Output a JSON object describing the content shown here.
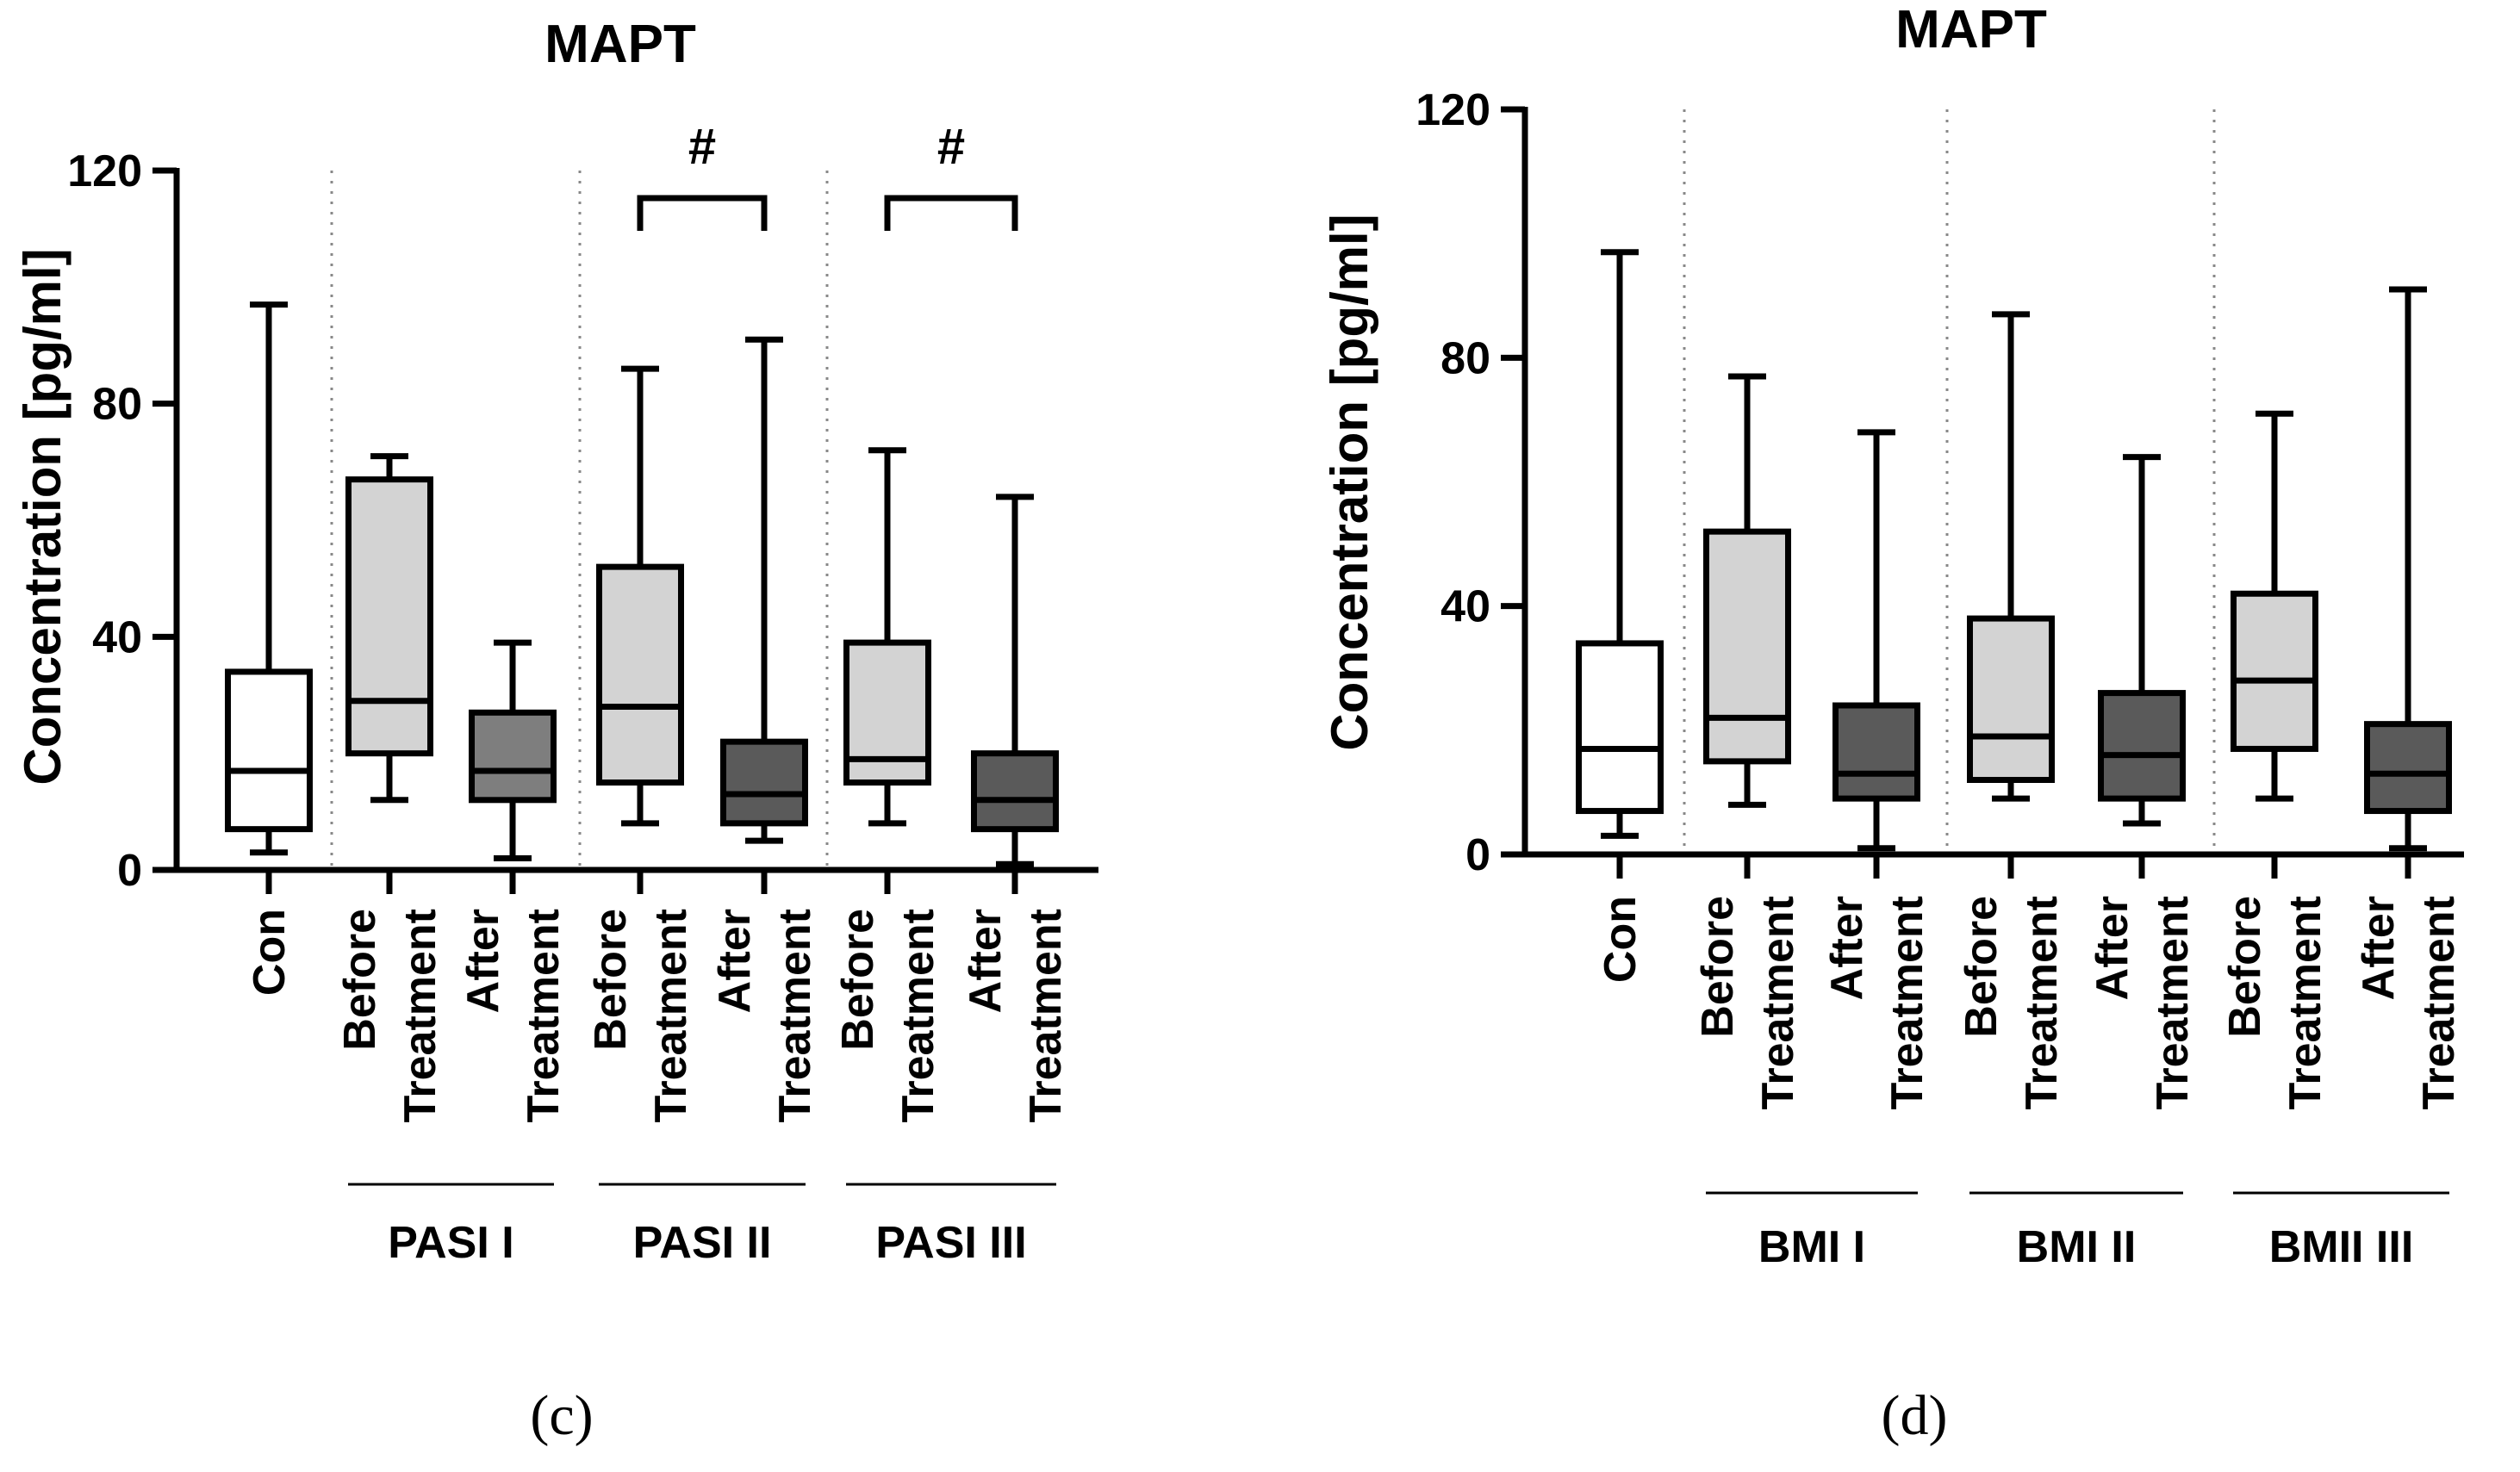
{
  "chart_data": [
    {
      "type": "boxplot",
      "panel_label": "(c)",
      "title": "MAPT",
      "ylabel": "Concentration [pg/ml]",
      "xlabel": "",
      "ylim": [
        0,
        120
      ],
      "yticks": [
        0,
        40,
        80,
        120
      ],
      "colors": {
        "Con": "#ffffff",
        "Before": "#d3d3d3",
        "After_I": "#7e7e7e",
        "After": "#5a5a5a"
      },
      "boxes": [
        {
          "category": "Con",
          "label_lines": [
            "Con"
          ],
          "group": "",
          "min": 3,
          "q1": 7,
          "median": 17,
          "q3": 34,
          "max": 97,
          "fill": "Con"
        },
        {
          "category": "Before Treatment",
          "label_lines": [
            "Before",
            "Treatment"
          ],
          "group": "PASI I",
          "min": 12,
          "q1": 20,
          "median": 29,
          "q3": 67,
          "max": 71,
          "fill": "Before"
        },
        {
          "category": "After Treatment",
          "label_lines": [
            "After",
            "Treatment"
          ],
          "group": "PASI I",
          "min": 2,
          "q1": 12,
          "median": 17,
          "q3": 27,
          "max": 39,
          "fill": "After_I"
        },
        {
          "category": "Before Treatment",
          "label_lines": [
            "Before",
            "Treatment"
          ],
          "group": "PASI II",
          "min": 8,
          "q1": 15,
          "median": 28,
          "q3": 52,
          "max": 86,
          "fill": "Before"
        },
        {
          "category": "After Treatment",
          "label_lines": [
            "After",
            "Treatment"
          ],
          "group": "PASI II",
          "min": 5,
          "q1": 8,
          "median": 13,
          "q3": 22,
          "max": 91,
          "fill": "After"
        },
        {
          "category": "Before Treatment",
          "label_lines": [
            "Before",
            "Treatment"
          ],
          "group": "PASI III",
          "min": 8,
          "q1": 15,
          "median": 19,
          "q3": 39,
          "max": 72,
          "fill": "Before"
        },
        {
          "category": "After Treatment",
          "label_lines": [
            "After",
            "Treatment"
          ],
          "group": "PASI III",
          "min": 1,
          "q1": 7,
          "median": 12,
          "q3": 20,
          "max": 64,
          "fill": "After"
        }
      ],
      "groups": [
        {
          "name": "PASI I",
          "from": 1,
          "to": 2
        },
        {
          "name": "PASI II",
          "from": 3,
          "to": 4
        },
        {
          "name": "PASI III",
          "from": 5,
          "to": 6
        }
      ],
      "annotations": [
        {
          "text": "#",
          "from": 3,
          "to": 4
        },
        {
          "text": "#",
          "from": 5,
          "to": 6
        }
      ]
    },
    {
      "type": "boxplot",
      "panel_label": "(d)",
      "title": "MAPT",
      "ylabel": "Concentration [pg/ml]",
      "xlabel": "",
      "ylim": [
        0,
        120
      ],
      "yticks": [
        0,
        40,
        80,
        120
      ],
      "colors": {
        "Con": "#ffffff",
        "Before": "#d3d3d3",
        "After": "#5a5a5a"
      },
      "boxes": [
        {
          "category": "Con",
          "label_lines": [
            "Con"
          ],
          "group": "",
          "min": 3,
          "q1": 7,
          "median": 17,
          "q3": 34,
          "max": 97,
          "fill": "Con"
        },
        {
          "category": "Before Treatment",
          "label_lines": [
            "Before",
            "Treatment"
          ],
          "group": "BMI I",
          "min": 8,
          "q1": 15,
          "median": 22,
          "q3": 52,
          "max": 77,
          "fill": "Before"
        },
        {
          "category": "After Treatment",
          "label_lines": [
            "After",
            "Treatment"
          ],
          "group": "BMI I",
          "min": 1,
          "q1": 9,
          "median": 13,
          "q3": 24,
          "max": 68,
          "fill": "After"
        },
        {
          "category": "Before Treatment",
          "label_lines": [
            "Before",
            "Treatment"
          ],
          "group": "BMI II",
          "min": 9,
          "q1": 12,
          "median": 19,
          "q3": 38,
          "max": 87,
          "fill": "Before"
        },
        {
          "category": "After Treatment",
          "label_lines": [
            "After",
            "Treatment"
          ],
          "group": "BMI II",
          "min": 5,
          "q1": 9,
          "median": 16,
          "q3": 26,
          "max": 64,
          "fill": "After"
        },
        {
          "category": "Before Treatment",
          "label_lines": [
            "Before",
            "Treatment"
          ],
          "group": "BMII III",
          "min": 9,
          "q1": 17,
          "median": 28,
          "q3": 42,
          "max": 71,
          "fill": "Before"
        },
        {
          "category": "After Treatment",
          "label_lines": [
            "After",
            "Treatment"
          ],
          "group": "BMII III",
          "min": 1,
          "q1": 7,
          "median": 13,
          "q3": 21,
          "max": 91,
          "fill": "After"
        }
      ],
      "groups": [
        {
          "name": "BMI I",
          "from": 1,
          "to": 2
        },
        {
          "name": "BMI II",
          "from": 3,
          "to": 4
        },
        {
          "name": "BMII III",
          "from": 5,
          "to": 6
        }
      ],
      "annotations": []
    }
  ]
}
